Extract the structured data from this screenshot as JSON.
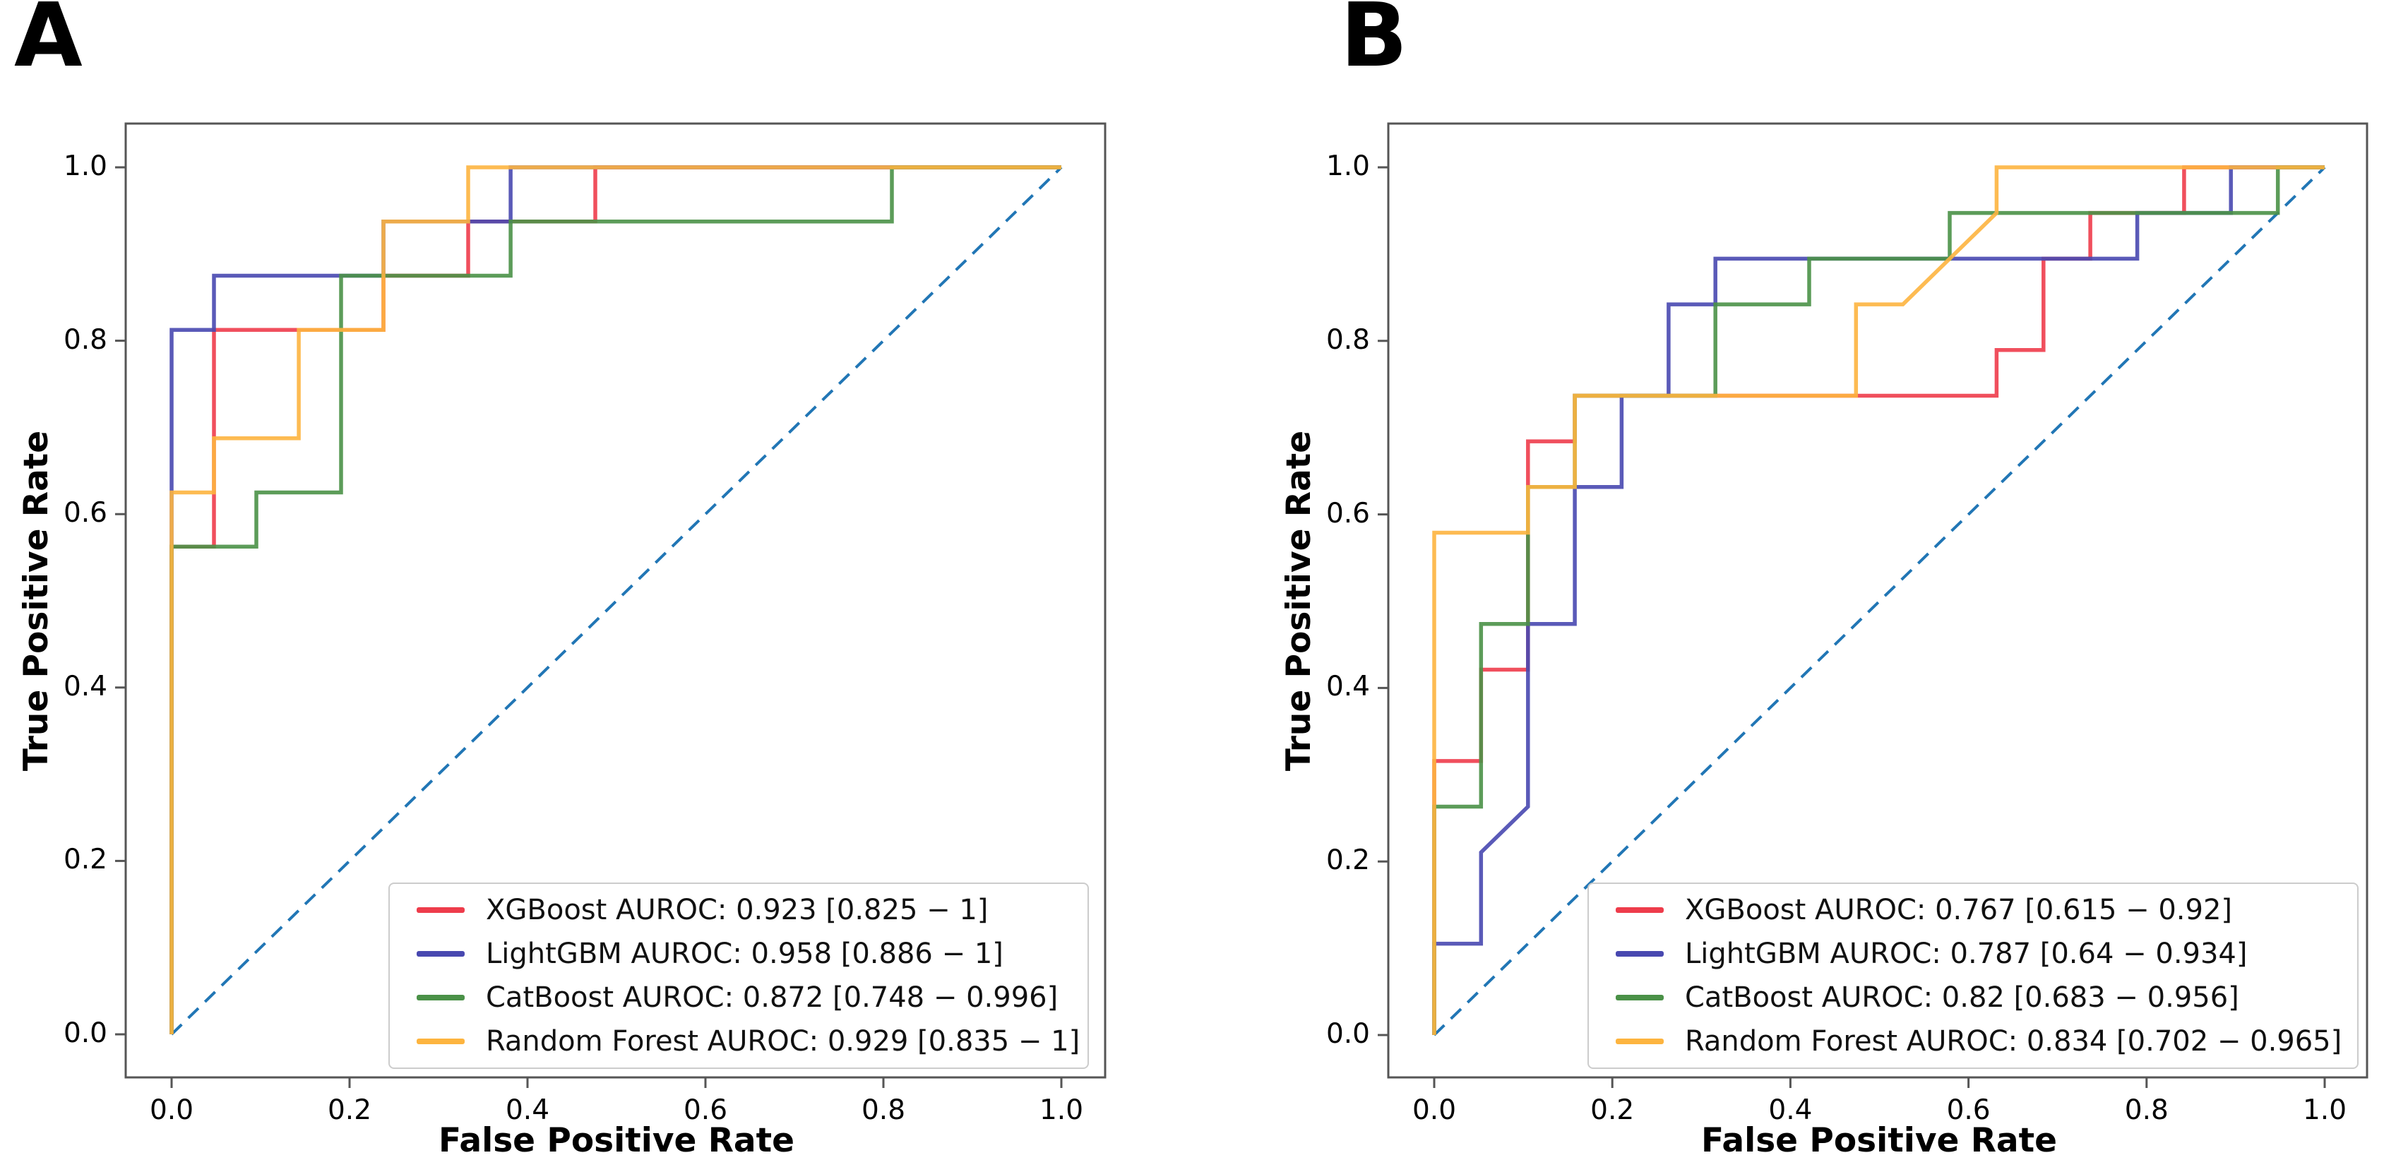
{
  "figure_title": "",
  "chart_data": {
    "type": "line",
    "subtype": "roc-step-curves",
    "colors": {
      "xgboost": "#ee3c4b",
      "lightgbm": "#4848b0",
      "catboost": "#4a9147",
      "random_forest": "#fdb43f",
      "chance_diagonal": "#2176b5",
      "axis": "#555555"
    },
    "panels": [
      {
        "panel_label": "A",
        "x_axis": {
          "label": "False Positive Rate",
          "range": [
            0.0,
            1.0
          ],
          "tick_labels": [
            "0.0",
            "0.2",
            "0.4",
            "0.6",
            "0.8",
            "1.0"
          ],
          "tick_values": [
            0.0,
            0.2,
            0.4,
            0.6,
            0.8,
            1.0
          ]
        },
        "y_axis": {
          "label": "True Positive Rate",
          "range": [
            0.0,
            1.0
          ],
          "tick_labels": [
            "0.0",
            "0.2",
            "0.4",
            "0.6",
            "0.8",
            "1.0"
          ],
          "tick_values": [
            0.0,
            0.2,
            0.4,
            0.6,
            0.8,
            1.0
          ]
        },
        "grid": false,
        "diagonal_reference": {
          "style": "dashed",
          "from": [
            0,
            0
          ],
          "to": [
            1,
            1
          ]
        },
        "legend": {
          "position": "lower right",
          "items": [
            {
              "label": "XGBoost AUROC: 0.923 [0.825 − 1]",
              "series": "xgboost",
              "auroc": 0.923,
              "ci": [
                0.825,
                1
              ]
            },
            {
              "label": "LightGBM AUROC: 0.958 [0.886 − 1]",
              "series": "lightgbm",
              "auroc": 0.958,
              "ci": [
                0.886,
                1
              ]
            },
            {
              "label": "CatBoost AUROC: 0.872 [0.748 − 0.996]",
              "series": "catboost",
              "auroc": 0.872,
              "ci": [
                0.748,
                0.996
              ]
            },
            {
              "label": "Random Forest AUROC: 0.929 [0.835 − 1]",
              "series": "random_forest",
              "auroc": 0.929,
              "ci": [
                0.835,
                1
              ]
            }
          ]
        },
        "series": [
          {
            "name": "xgboost",
            "points": [
              [
                0,
                0
              ],
              [
                0,
                0.5625
              ],
              [
                0.0476,
                0.5625
              ],
              [
                0.0476,
                0.8125
              ],
              [
                0.2381,
                0.8125
              ],
              [
                0.2381,
                0.875
              ],
              [
                0.3333,
                0.875
              ],
              [
                0.3333,
                0.9375
              ],
              [
                0.4762,
                0.9375
              ],
              [
                0.4762,
                1
              ],
              [
                1,
                1
              ]
            ]
          },
          {
            "name": "lightgbm",
            "points": [
              [
                0,
                0
              ],
              [
                0,
                0.8125
              ],
              [
                0.0476,
                0.8125
              ],
              [
                0.0476,
                0.875
              ],
              [
                0.2381,
                0.875
              ],
              [
                0.2381,
                0.9375
              ],
              [
                0.381,
                0.9375
              ],
              [
                0.381,
                1
              ],
              [
                1,
                1
              ]
            ]
          },
          {
            "name": "catboost",
            "points": [
              [
                0,
                0
              ],
              [
                0,
                0.5625
              ],
              [
                0.0952,
                0.5625
              ],
              [
                0.0952,
                0.625
              ],
              [
                0.1905,
                0.625
              ],
              [
                0.1905,
                0.875
              ],
              [
                0.381,
                0.875
              ],
              [
                0.381,
                0.9375
              ],
              [
                0.8095,
                0.9375
              ],
              [
                0.8095,
                1
              ],
              [
                1,
                1
              ]
            ]
          },
          {
            "name": "random_forest",
            "points": [
              [
                0,
                0
              ],
              [
                0,
                0.625
              ],
              [
                0.0476,
                0.625
              ],
              [
                0.0476,
                0.6875
              ],
              [
                0.1429,
                0.6875
              ],
              [
                0.1429,
                0.8125
              ],
              [
                0.2381,
                0.8125
              ],
              [
                0.2381,
                0.9375
              ],
              [
                0.3333,
                0.9375
              ],
              [
                0.3333,
                1
              ],
              [
                1,
                1
              ]
            ]
          }
        ]
      },
      {
        "panel_label": "B",
        "x_axis": {
          "label": "False Positive Rate",
          "range": [
            0.0,
            1.0
          ],
          "tick_labels": [
            "0.0",
            "0.2",
            "0.4",
            "0.6",
            "0.8",
            "1.0"
          ],
          "tick_values": [
            0.0,
            0.2,
            0.4,
            0.6,
            0.8,
            1.0
          ]
        },
        "y_axis": {
          "label": "True Positive Rate",
          "range": [
            0.0,
            1.0
          ],
          "tick_labels": [
            "0.0",
            "0.2",
            "0.4",
            "0.6",
            "0.8",
            "1.0"
          ],
          "tick_values": [
            0.0,
            0.2,
            0.4,
            0.6,
            0.8,
            1.0
          ]
        },
        "grid": false,
        "diagonal_reference": {
          "style": "dashed",
          "from": [
            0,
            0
          ],
          "to": [
            1,
            1
          ]
        },
        "legend": {
          "position": "lower right",
          "items": [
            {
              "label": "XGBoost AUROC: 0.767 [0.615 − 0.92]",
              "series": "xgboost",
              "auroc": 0.767,
              "ci": [
                0.615,
                0.92
              ]
            },
            {
              "label": "LightGBM AUROC: 0.787 [0.64 − 0.934]",
              "series": "lightgbm",
              "auroc": 0.787,
              "ci": [
                0.64,
                0.934
              ]
            },
            {
              "label": "CatBoost AUROC: 0.82 [0.683 − 0.956]",
              "series": "catboost",
              "auroc": 0.82,
              "ci": [
                0.683,
                0.956
              ]
            },
            {
              "label": "Random Forest AUROC: 0.834 [0.702 − 0.965]",
              "series": "random_forest",
              "auroc": 0.834,
              "ci": [
                0.702,
                0.965
              ]
            }
          ]
        },
        "series": [
          {
            "name": "xgboost",
            "points": [
              [
                0,
                0
              ],
              [
                0,
                0.3158
              ],
              [
                0.0526,
                0.3158
              ],
              [
                0.0526,
                0.4211
              ],
              [
                0.1053,
                0.4211
              ],
              [
                0.1053,
                0.6842
              ],
              [
                0.1579,
                0.6842
              ],
              [
                0.1579,
                0.7368
              ],
              [
                0.6316,
                0.7368
              ],
              [
                0.6316,
                0.7895
              ],
              [
                0.6842,
                0.7895
              ],
              [
                0.6842,
                0.8947
              ],
              [
                0.7368,
                0.8947
              ],
              [
                0.7368,
                0.9474
              ],
              [
                0.8421,
                0.9474
              ],
              [
                0.8421,
                1
              ],
              [
                1,
                1
              ]
            ]
          },
          {
            "name": "lightgbm",
            "points": [
              [
                0,
                0
              ],
              [
                0,
                0.1053
              ],
              [
                0.0526,
                0.1053
              ],
              [
                0.0526,
                0.2105
              ],
              [
                0.1053,
                0.2632
              ],
              [
                0.1053,
                0.4737
              ],
              [
                0.1579,
                0.4737
              ],
              [
                0.1579,
                0.6316
              ],
              [
                0.2105,
                0.6316
              ],
              [
                0.2105,
                0.7368
              ],
              [
                0.2632,
                0.7368
              ],
              [
                0.2632,
                0.8421
              ],
              [
                0.3158,
                0.8421
              ],
              [
                0.3158,
                0.8947
              ],
              [
                0.7895,
                0.8947
              ],
              [
                0.7895,
                0.9474
              ],
              [
                0.8947,
                0.9474
              ],
              [
                0.8947,
                1
              ],
              [
                1,
                1
              ]
            ]
          },
          {
            "name": "catboost",
            "points": [
              [
                0,
                0
              ],
              [
                0,
                0.2632
              ],
              [
                0.0526,
                0.2632
              ],
              [
                0.0526,
                0.4737
              ],
              [
                0.1053,
                0.4737
              ],
              [
                0.1053,
                0.6316
              ],
              [
                0.1579,
                0.6316
              ],
              [
                0.1579,
                0.7368
              ],
              [
                0.3158,
                0.7368
              ],
              [
                0.3158,
                0.8421
              ],
              [
                0.4211,
                0.8421
              ],
              [
                0.4211,
                0.8947
              ],
              [
                0.5789,
                0.8947
              ],
              [
                0.5789,
                0.9474
              ],
              [
                0.9474,
                0.9474
              ],
              [
                0.9474,
                1
              ],
              [
                1,
                1
              ]
            ]
          },
          {
            "name": "random_forest",
            "points": [
              [
                0,
                0
              ],
              [
                0,
                0.5789
              ],
              [
                0.1053,
                0.5789
              ],
              [
                0.1053,
                0.6316
              ],
              [
                0.1579,
                0.6316
              ],
              [
                0.1579,
                0.7368
              ],
              [
                0.4737,
                0.7368
              ],
              [
                0.4737,
                0.8421
              ],
              [
                0.5263,
                0.8421
              ],
              [
                0.6316,
                0.9474
              ],
              [
                0.6316,
                1
              ],
              [
                1,
                1
              ]
            ]
          }
        ]
      }
    ]
  }
}
